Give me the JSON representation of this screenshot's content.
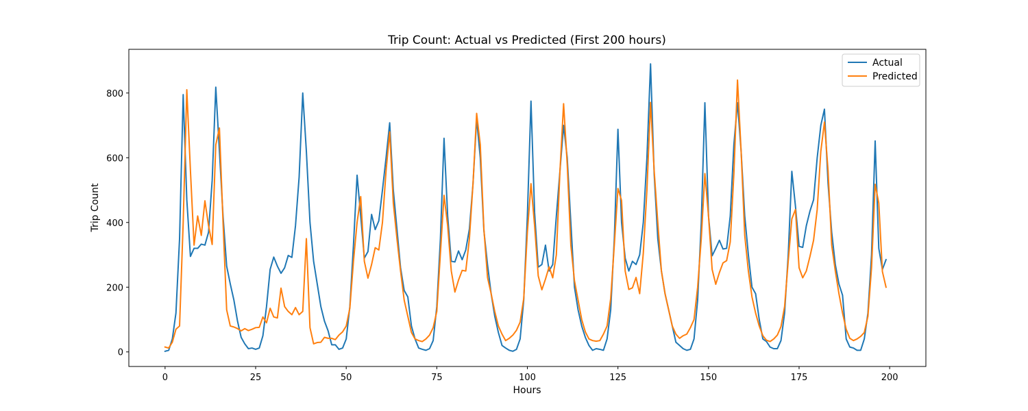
{
  "chart_data": {
    "type": "line",
    "title": "Trip Count: Actual vs Predicted (First 200 hours)",
    "xlabel": "Hours",
    "ylabel": "Trip Count",
    "xlim": [
      -10,
      210
    ],
    "ylim": [
      -45,
      935
    ],
    "xticks": [
      0,
      25,
      50,
      75,
      100,
      125,
      150,
      175,
      200
    ],
    "yticks": [
      0,
      200,
      400,
      600,
      800
    ],
    "grid": false,
    "legend_position": "top-right",
    "x": [
      0,
      1,
      2,
      3,
      4,
      5,
      6,
      7,
      8,
      9,
      10,
      11,
      12,
      13,
      14,
      15,
      16,
      17,
      18,
      19,
      20,
      21,
      22,
      23,
      24,
      25,
      26,
      27,
      28,
      29,
      30,
      31,
      32,
      33,
      34,
      35,
      36,
      37,
      38,
      39,
      40,
      41,
      42,
      43,
      44,
      45,
      46,
      47,
      48,
      49,
      50,
      51,
      52,
      53,
      54,
      55,
      56,
      57,
      58,
      59,
      60,
      61,
      62,
      63,
      64,
      65,
      66,
      67,
      68,
      69,
      70,
      71,
      72,
      73,
      74,
      75,
      76,
      77,
      78,
      79,
      80,
      81,
      82,
      83,
      84,
      85,
      86,
      87,
      88,
      89,
      90,
      91,
      92,
      93,
      94,
      95,
      96,
      97,
      98,
      99,
      100,
      101,
      102,
      103,
      104,
      105,
      106,
      107,
      108,
      109,
      110,
      111,
      112,
      113,
      114,
      115,
      116,
      117,
      118,
      119,
      120,
      121,
      122,
      123,
      124,
      125,
      126,
      127,
      128,
      129,
      130,
      131,
      132,
      133,
      134,
      135,
      136,
      137,
      138,
      139,
      140,
      141,
      142,
      143,
      144,
      145,
      146,
      147,
      148,
      149,
      150,
      151,
      152,
      153,
      154,
      155,
      156,
      157,
      158,
      159,
      160,
      161,
      162,
      163,
      164,
      165,
      166,
      167,
      168,
      169,
      170,
      171,
      172,
      173,
      174,
      175,
      176,
      177,
      178,
      179,
      180,
      181,
      182,
      183,
      184,
      185,
      186,
      187,
      188,
      189,
      190,
      191,
      192,
      193,
      194,
      195,
      196,
      197,
      198,
      199
    ],
    "series": [
      {
        "name": "Actual",
        "color": "#1f77b4",
        "values": [
          2,
          5,
          40,
          120,
          350,
          795,
          470,
          295,
          320,
          320,
          333,
          330,
          370,
          530,
          818,
          620,
          420,
          265,
          210,
          160,
          95,
          45,
          25,
          10,
          12,
          8,
          12,
          50,
          140,
          255,
          293,
          265,
          243,
          260,
          298,
          292,
          390,
          540,
          800,
          620,
          400,
          280,
          210,
          140,
          95,
          65,
          22,
          22,
          8,
          12,
          40,
          140,
          330,
          546,
          420,
          290,
          310,
          425,
          378,
          405,
          500,
          600,
          708,
          500,
          380,
          260,
          190,
          170,
          80,
          40,
          12,
          8,
          5,
          10,
          35,
          140,
          350,
          660,
          420,
          280,
          278,
          312,
          285,
          315,
          380,
          520,
          720,
          600,
          375,
          270,
          180,
          110,
          60,
          20,
          12,
          5,
          2,
          8,
          40,
          160,
          420,
          775,
          430,
          262,
          270,
          330,
          250,
          270,
          420,
          560,
          700,
          600,
          400,
          200,
          130,
          80,
          45,
          20,
          5,
          10,
          8,
          5,
          40,
          130,
          350,
          688,
          400,
          290,
          250,
          280,
          270,
          300,
          400,
          600,
          890,
          550,
          350,
          250,
          180,
          130,
          80,
          30,
          20,
          10,
          5,
          8,
          40,
          160,
          400,
          770,
          420,
          297,
          320,
          345,
          318,
          320,
          420,
          640,
          770,
          620,
          420,
          300,
          200,
          180,
          100,
          40,
          32,
          15,
          10,
          10,
          35,
          120,
          300,
          558,
          450,
          326,
          323,
          390,
          435,
          470,
          600,
          700,
          750,
          520,
          370,
          270,
          210,
          175,
          40,
          15,
          12,
          5,
          5,
          40,
          120,
          300,
          652,
          320,
          255,
          285
        ]
      },
      {
        "name": "Predicted",
        "color": "#ff7f0e",
        "values": [
          15,
          12,
          30,
          70,
          80,
          400,
          810,
          560,
          330,
          420,
          360,
          467,
          390,
          332,
          640,
          692,
          400,
          130,
          80,
          77,
          72,
          65,
          72,
          66,
          70,
          75,
          76,
          108,
          90,
          135,
          108,
          105,
          197,
          140,
          125,
          115,
          137,
          115,
          125,
          350,
          75,
          25,
          29,
          30,
          45,
          42,
          42,
          38,
          52,
          62,
          80,
          135,
          280,
          400,
          480,
          280,
          228,
          270,
          322,
          315,
          400,
          560,
          680,
          460,
          350,
          250,
          160,
          110,
          60,
          40,
          35,
          32,
          40,
          52,
          75,
          125,
          305,
          484,
          390,
          250,
          185,
          222,
          252,
          250,
          350,
          520,
          737,
          640,
          380,
          230,
          180,
          125,
          80,
          55,
          35,
          42,
          52,
          67,
          92,
          165,
          370,
          520,
          390,
          235,
          192,
          225,
          263,
          229,
          300,
          560,
          767,
          580,
          330,
          220,
          160,
          100,
          62,
          40,
          35,
          33,
          35,
          55,
          80,
          165,
          330,
          505,
          468,
          250,
          193,
          198,
          230,
          180,
          305,
          500,
          771,
          560,
          400,
          250,
          180,
          130,
          80,
          55,
          42,
          50,
          55,
          75,
          100,
          200,
          350,
          551,
          420,
          255,
          209,
          245,
          275,
          282,
          340,
          550,
          840,
          620,
          360,
          250,
          170,
          120,
          80,
          50,
          36,
          32,
          40,
          52,
          78,
          140,
          280,
          411,
          440,
          260,
          229,
          250,
          295,
          345,
          440,
          620,
          710,
          560,
          330,
          250,
          180,
          120,
          70,
          42,
          35,
          40,
          48,
          60,
          110,
          260,
          518,
          460,
          248,
          200
        ]
      }
    ]
  }
}
